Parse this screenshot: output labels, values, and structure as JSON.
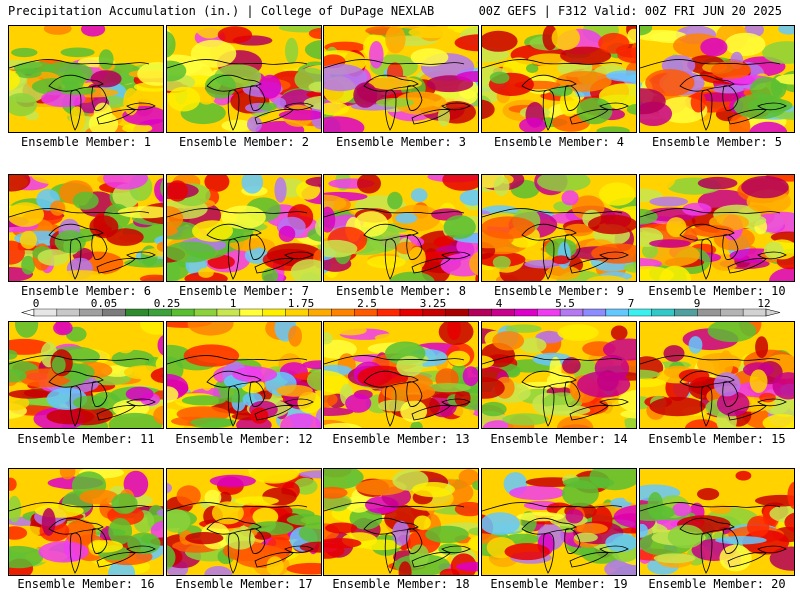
{
  "header": {
    "title": "Precipitation Accumulation (in.) | College of DuPage NEXLAB",
    "valid": "00Z GEFS | F312 Valid: 00Z FRI JUN 20 2025"
  },
  "panels": [
    {
      "label": "Ensemble Member: 1"
    },
    {
      "label": "Ensemble Member: 2"
    },
    {
      "label": "Ensemble Member: 3"
    },
    {
      "label": "Ensemble Member: 4"
    },
    {
      "label": "Ensemble Member: 5"
    },
    {
      "label": "Ensemble Member: 6"
    },
    {
      "label": "Ensemble Member: 7"
    },
    {
      "label": "Ensemble Member: 8"
    },
    {
      "label": "Ensemble Member: 9"
    },
    {
      "label": "Ensemble Member: 10"
    },
    {
      "label": "Ensemble Member: 11"
    },
    {
      "label": "Ensemble Member: 12"
    },
    {
      "label": "Ensemble Member: 13"
    },
    {
      "label": "Ensemble Member: 14"
    },
    {
      "label": "Ensemble Member: 15"
    },
    {
      "label": "Ensemble Member: 16"
    },
    {
      "label": "Ensemble Member: 17"
    },
    {
      "label": "Ensemble Member: 18"
    },
    {
      "label": "Ensemble Member: 19"
    },
    {
      "label": "Ensemble Member: 20"
    }
  ],
  "colorbar": {
    "tick_labels": [
      "0",
      "0.05",
      "0.25",
      "1",
      "1.75",
      "2.5",
      "3.25",
      "4",
      "5.5",
      "7",
      "9",
      "12"
    ],
    "colors": [
      "#e6e6e6",
      "#c8c8c8",
      "#a0a0a0",
      "#7c7c7c",
      "#2e8b2e",
      "#3ca03c",
      "#5abe32",
      "#8cd23c",
      "#c8e650",
      "#ffff3c",
      "#fff000",
      "#ffd200",
      "#ffaa00",
      "#ff8200",
      "#ff5a00",
      "#ff2800",
      "#e60000",
      "#c80000",
      "#aa0000",
      "#b4005a",
      "#c8008c",
      "#dc00c8",
      "#f03cf0",
      "#b478f0",
      "#8c8cff",
      "#64c8ff",
      "#3cf0f0",
      "#32c8c8",
      "#50a0a0",
      "#969696",
      "#b4b4b4",
      "#d2d2d2"
    ]
  }
}
